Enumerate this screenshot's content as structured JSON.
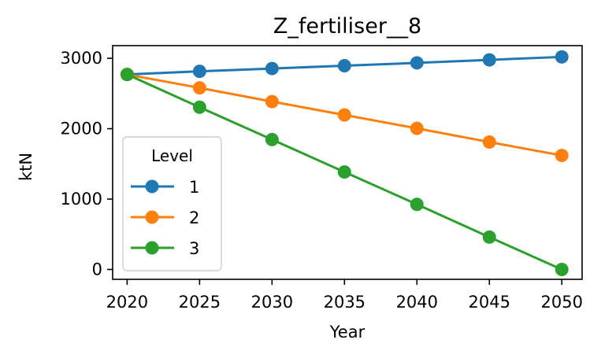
{
  "chart_data": {
    "type": "line",
    "title": "Z_fertiliser__8",
    "xlabel": "Year",
    "ylabel": "ktN",
    "x": [
      2020,
      2025,
      2030,
      2035,
      2040,
      2045,
      2050
    ],
    "xlim": [
      2019,
      2051.4
    ],
    "ylim": [
      -140,
      3180
    ],
    "yticks": [
      0,
      1000,
      2000,
      3000
    ],
    "grid": false,
    "legend": {
      "title": "Level",
      "placement": "lower-left"
    },
    "series": [
      {
        "name": "1",
        "color": "#1f77b4",
        "values": [
          2770,
          2815,
          2855,
          2895,
          2935,
          2978,
          3020
        ]
      },
      {
        "name": "2",
        "color": "#ff7f0e",
        "values": [
          2770,
          2580,
          2385,
          2195,
          2005,
          1810,
          1620
        ]
      },
      {
        "name": "3",
        "color": "#2ca02c",
        "values": [
          2770,
          2305,
          1845,
          1385,
          925,
          460,
          0
        ]
      }
    ]
  }
}
